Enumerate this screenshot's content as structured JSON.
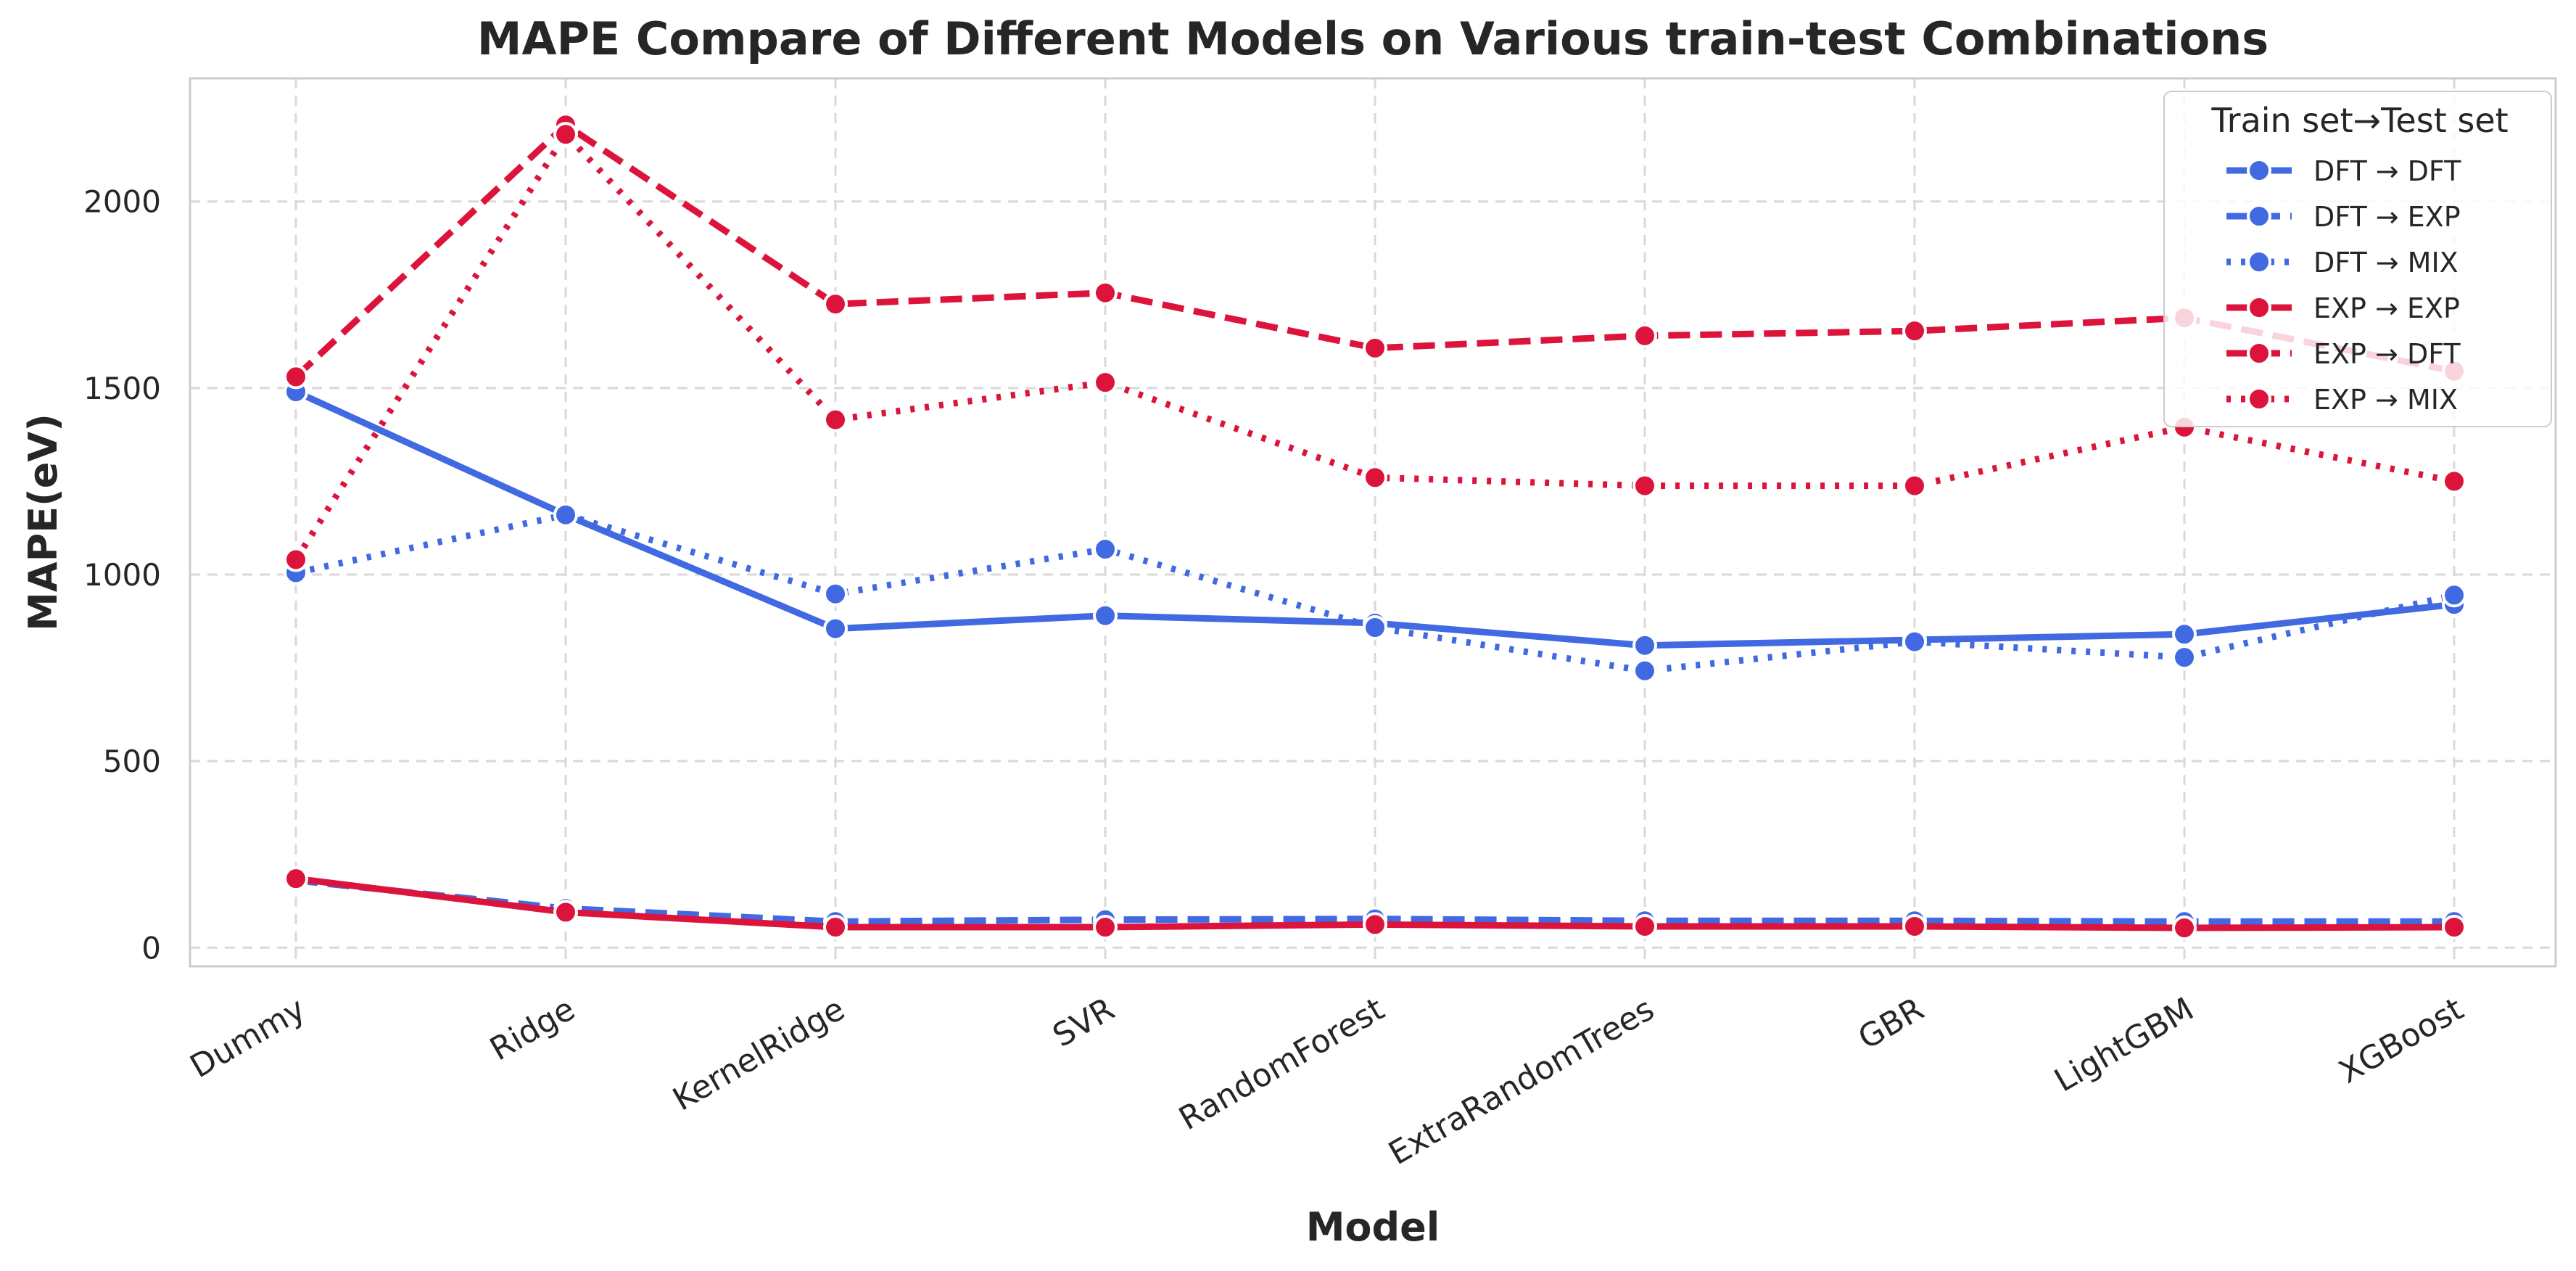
{
  "chart_data": {
    "type": "line",
    "title": "MAPE Compare of Different Models on Various train-test Combinations",
    "xlabel": "Model",
    "ylabel": "MAPE(eV)",
    "categories": [
      "Dummy",
      "Ridge",
      "KernelRidge",
      "SVR",
      "RandomForest",
      "ExtraRandomTrees",
      "GBR",
      "LightGBM",
      "XGBoost"
    ],
    "y_ticks": [
      "0",
      "500",
      "1000",
      "1500",
      "2000"
    ],
    "ylim": [
      -50,
      2330
    ],
    "grid": true,
    "legend": {
      "title": "Train set→Test set",
      "placement": "top-right"
    },
    "series": [
      {
        "name": "DFT → DFT",
        "color": "#4169e1",
        "dash": "solid",
        "values": [
          1490,
          1160,
          855,
          890,
          870,
          810,
          825,
          840,
          920
        ]
      },
      {
        "name": "DFT → EXP",
        "color": "#4169e1",
        "dash": "dashed",
        "values": [
          180,
          105,
          70,
          75,
          77,
          72,
          72,
          70,
          70
        ]
      },
      {
        "name": "DFT → MIX",
        "color": "#4169e1",
        "dash": "dotted",
        "values": [
          1005,
          1160,
          948,
          1068,
          858,
          742,
          820,
          778,
          945
        ]
      },
      {
        "name": "EXP → EXP",
        "color": "#dc143c",
        "dash": "solid",
        "values": [
          185,
          95,
          55,
          55,
          62,
          57,
          57,
          53,
          55
        ]
      },
      {
        "name": "EXP → DFT",
        "color": "#dc143c",
        "dash": "dashed",
        "values": [
          1530,
          2205,
          1725,
          1755,
          1607,
          1640,
          1653,
          1688,
          1545
        ]
      },
      {
        "name": "EXP → MIX",
        "color": "#dc143c",
        "dash": "dotted",
        "values": [
          1040,
          2180,
          1415,
          1515,
          1260,
          1238,
          1238,
          1395,
          1250
        ]
      }
    ]
  }
}
